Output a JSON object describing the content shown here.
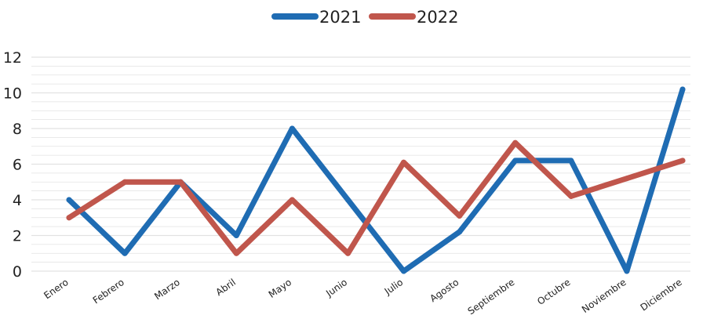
{
  "chart_data": {
    "type": "line",
    "categories": [
      "Enero",
      "Febrero",
      "Marzo",
      "Abril",
      "Mayo",
      "Junio",
      "Julio",
      "Agosto",
      "Septiembre",
      "Octubre",
      "Noviembre",
      "Diciembre"
    ],
    "series": [
      {
        "name": "2021",
        "color": "#1f6cb3",
        "values": [
          4,
          1,
          5,
          2,
          8,
          4,
          0,
          2.2,
          6.2,
          6.2,
          0,
          10.2
        ]
      },
      {
        "name": "2022",
        "color": "#c0564c",
        "values": [
          3,
          5,
          5,
          1,
          4,
          1,
          6.1,
          3.1,
          7.2,
          4.2,
          5.2,
          6.2
        ]
      }
    ],
    "y_ticks": [
      "0",
      "2",
      "4",
      "6",
      "8",
      "10",
      "12"
    ],
    "ylim": [
      0,
      12
    ],
    "grid": "horizontal",
    "grid_color": "#e2e2e2",
    "legend_position": "top-center",
    "title": "",
    "xlabel": "",
    "ylabel": ""
  }
}
